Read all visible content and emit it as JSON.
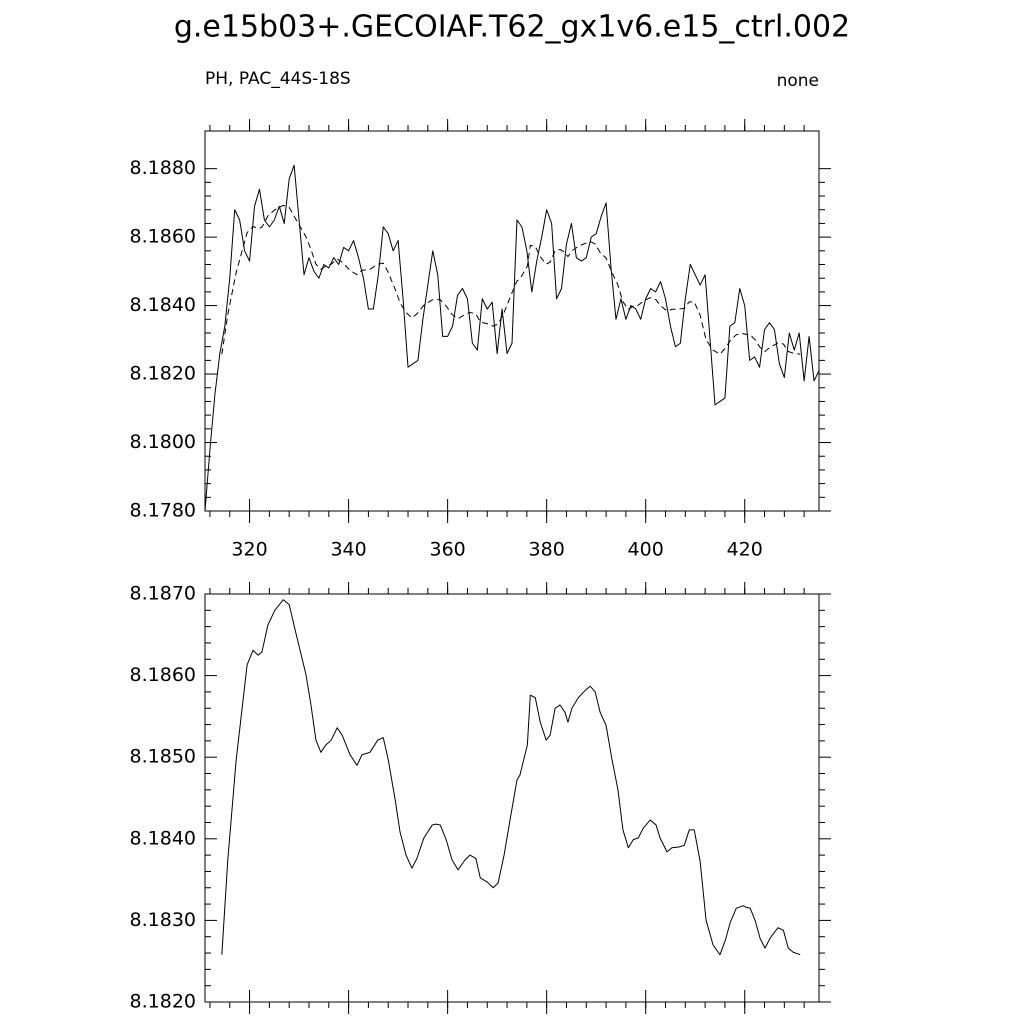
{
  "title": "g.e15b03+.GECOIAF.T62_gx1v6.e15_ctrl.002",
  "chart_data": [
    {
      "type": "line",
      "left_label": "PH, PAC_44S-18S",
      "right_label": "none",
      "xlim": [
        311,
        435
      ],
      "xticks": [
        320,
        340,
        360,
        380,
        400,
        420
      ],
      "xtick_labels": true,
      "ylim": [
        8.178,
        8.1891
      ],
      "yticks": [
        {
          "value": 8.178,
          "label": "8.1780"
        },
        {
          "value": 8.18,
          "label": "8.1800"
        },
        {
          "value": 8.182,
          "label": "8.1820"
        },
        {
          "value": 8.184,
          "label": "8.1840"
        },
        {
          "value": 8.186,
          "label": "8.1860"
        },
        {
          "value": 8.188,
          "label": "8.1880"
        }
      ],
      "series": [
        {
          "color": "#000000",
          "dashed": false,
          "x": [
            311,
            312,
            313,
            314,
            315,
            316,
            317,
            318,
            319,
            320,
            321,
            322,
            323,
            324,
            325,
            326,
            327,
            328,
            329,
            330,
            331,
            332,
            333,
            334,
            335,
            336,
            337,
            338,
            339,
            340,
            341,
            342,
            343,
            344,
            345,
            346,
            347,
            348,
            349,
            350,
            351,
            352,
            353,
            354,
            355,
            356,
            357,
            358,
            359,
            360,
            361,
            362,
            363,
            364,
            365,
            366,
            367,
            368,
            369,
            370,
            371,
            372,
            373,
            374,
            375,
            376,
            377,
            378,
            379,
            380,
            381,
            382,
            383,
            384,
            385,
            386,
            387,
            388,
            389,
            390,
            391,
            392,
            393,
            394,
            395,
            396,
            397,
            398,
            399,
            400,
            401,
            402,
            403,
            404,
            405,
            406,
            407,
            408,
            409,
            410,
            411,
            412,
            413,
            414,
            415,
            416,
            417,
            418,
            419,
            420,
            421,
            422,
            423,
            424,
            425,
            426,
            427,
            428,
            429,
            430,
            431,
            432,
            433,
            434,
            435
          ],
          "values": [
            8.178,
            8.1798,
            8.1814,
            8.1826,
            8.1834,
            8.1848,
            8.1868,
            8.1865,
            8.1856,
            8.1853,
            8.1869,
            8.1874,
            8.1865,
            8.1863,
            8.1865,
            8.1869,
            8.1864,
            8.1877,
            8.1881,
            8.1865,
            8.1849,
            8.1854,
            8.185,
            8.1848,
            8.1852,
            8.1851,
            8.1854,
            8.1852,
            8.1857,
            8.1856,
            8.1859,
            8.1854,
            8.1848,
            8.1839,
            8.1839,
            8.1849,
            8.1863,
            8.1861,
            8.1856,
            8.1859,
            8.1842,
            8.1822,
            8.1823,
            8.1824,
            8.1836,
            8.1846,
            8.1856,
            8.1849,
            8.1831,
            8.1831,
            8.1834,
            8.1843,
            8.1845,
            8.1842,
            8.1829,
            8.1827,
            8.1842,
            8.1839,
            8.1841,
            8.1826,
            8.1839,
            8.1826,
            8.1829,
            8.1865,
            8.1863,
            8.1856,
            8.1844,
            8.1853,
            8.186,
            8.1868,
            8.1864,
            8.1842,
            8.1845,
            8.1858,
            8.1864,
            8.1854,
            8.1853,
            8.1854,
            8.186,
            8.1861,
            8.1866,
            8.187,
            8.1851,
            8.1836,
            8.1842,
            8.1836,
            8.184,
            8.1839,
            8.1836,
            8.1842,
            8.1845,
            8.1844,
            8.1847,
            8.1842,
            8.1834,
            8.1828,
            8.1829,
            8.1842,
            8.1852,
            8.1849,
            8.1846,
            8.1849,
            8.183,
            8.1811,
            8.1812,
            8.1813,
            8.1834,
            8.1835,
            8.1845,
            8.184,
            8.1824,
            8.1825,
            8.1822,
            8.1833,
            8.1835,
            8.1833,
            8.1823,
            8.1819,
            8.1832,
            8.1827,
            8.1832,
            8.1818,
            8.1831,
            8.1818,
            8.1821
          ]
        },
        {
          "color": "#000000",
          "dashed": true,
          "x": [
            314.4,
            315.6,
            317.3,
            319.5,
            320.7,
            321.7,
            322.5,
            323.7,
            325.1,
            326.8,
            328.0,
            329.2,
            330.2,
            331.4,
            332.4,
            333.4,
            334.4,
            335.4,
            336.5,
            337.7,
            338.7,
            339.5,
            340.3,
            341.7,
            342.7,
            344.3,
            345.9,
            347.0,
            348.0,
            349.4,
            350.4,
            351.6,
            352.8,
            353.8,
            355.2,
            356.9,
            357.7,
            358.5,
            359.7,
            360.9,
            362.1,
            363.5,
            364.5,
            365.7,
            366.6,
            368.0,
            369.2,
            370.2,
            371.4,
            372.6,
            374.0,
            374.6,
            376.1,
            376.7,
            377.7,
            378.7,
            379.9,
            380.7,
            381.7,
            382.7,
            383.7,
            384.3,
            385.1,
            386.4,
            387.8,
            388.8,
            389.8,
            390.8,
            392.0,
            393.2,
            394.4,
            395.4,
            396.5,
            397.5,
            398.5,
            399.5,
            400.9,
            402.1,
            402.9,
            404.3,
            405.3,
            406.7,
            407.8,
            408.8,
            409.8,
            411.0,
            412.2,
            413.6,
            415.0,
            416.1,
            417.1,
            418.3,
            419.7,
            420.3,
            421.1,
            422.1,
            423.1,
            424.1,
            425.1,
            426.7,
            427.8,
            428.8,
            429.8,
            431.2
          ],
          "values": [
            8.18258,
            8.18374,
            8.18497,
            8.18613,
            8.18631,
            8.18625,
            8.18629,
            8.18662,
            8.1868,
            8.18693,
            8.18687,
            8.18656,
            8.18631,
            8.18601,
            8.18564,
            8.18521,
            8.18506,
            8.18515,
            8.18521,
            8.18536,
            8.18527,
            8.18515,
            8.18503,
            8.1849,
            8.18503,
            8.18506,
            8.18521,
            8.18524,
            8.18497,
            8.18448,
            8.18408,
            8.1838,
            8.18364,
            8.18376,
            8.18401,
            8.18417,
            8.18418,
            8.18417,
            8.18399,
            8.18374,
            8.18362,
            8.18374,
            8.1838,
            8.18376,
            8.18352,
            8.18347,
            8.1834,
            8.18346,
            8.1838,
            8.18423,
            8.18472,
            8.18478,
            8.18515,
            8.18576,
            8.18573,
            8.18543,
            8.18521,
            8.18527,
            8.1856,
            8.18564,
            8.18555,
            8.18543,
            8.1856,
            8.18573,
            8.18582,
            8.18587,
            8.1858,
            8.18555,
            8.18539,
            8.18497,
            8.1846,
            8.18411,
            8.18389,
            8.18399,
            8.18401,
            8.18413,
            8.18423,
            8.18417,
            8.18401,
            8.18384,
            8.18389,
            8.1839,
            8.18392,
            8.18411,
            8.18411,
            8.18372,
            8.183,
            8.1827,
            8.18258,
            8.18276,
            8.18298,
            8.18315,
            8.18318,
            8.18316,
            8.18315,
            8.183,
            8.18278,
            8.18266,
            8.18278,
            8.18291,
            8.18288,
            8.18266,
            8.18261,
            8.18258
          ]
        }
      ]
    },
    {
      "type": "line",
      "xlim": [
        311,
        435
      ],
      "xticks": [
        320,
        340,
        360,
        380,
        400,
        420
      ],
      "xtick_labels": false,
      "ylim": [
        8.182,
        8.187
      ],
      "yticks": [
        {
          "value": 8.182,
          "label": "8.1820"
        },
        {
          "value": 8.183,
          "label": "8.1830"
        },
        {
          "value": 8.184,
          "label": "8.1840"
        },
        {
          "value": 8.185,
          "label": "8.1850"
        },
        {
          "value": 8.186,
          "label": "8.1860"
        },
        {
          "value": 8.187,
          "label": "8.1870"
        }
      ],
      "series": [
        {
          "color": "#000000",
          "dashed": false,
          "x": [
            314.4,
            315.6,
            317.3,
            319.5,
            320.7,
            321.7,
            322.5,
            323.7,
            325.1,
            326.8,
            328.0,
            329.2,
            330.2,
            331.4,
            332.4,
            333.4,
            334.4,
            335.4,
            336.5,
            337.7,
            338.7,
            339.5,
            340.3,
            341.7,
            342.7,
            344.3,
            345.9,
            347.0,
            348.0,
            349.4,
            350.4,
            351.6,
            352.8,
            353.8,
            355.2,
            356.9,
            357.7,
            358.5,
            359.7,
            360.9,
            362.1,
            363.5,
            364.5,
            365.7,
            366.6,
            368.0,
            369.2,
            370.2,
            371.4,
            372.6,
            374.0,
            374.6,
            376.1,
            376.7,
            377.7,
            378.7,
            379.9,
            380.7,
            381.7,
            382.7,
            383.7,
            384.3,
            385.1,
            386.4,
            387.8,
            388.8,
            389.8,
            390.8,
            392.0,
            393.2,
            394.4,
            395.4,
            396.5,
            397.5,
            398.5,
            399.5,
            400.9,
            402.1,
            402.9,
            404.3,
            405.3,
            406.7,
            407.8,
            408.8,
            409.8,
            411.0,
            412.2,
            413.6,
            415.0,
            416.1,
            417.1,
            418.3,
            419.7,
            420.3,
            421.1,
            422.1,
            423.1,
            424.1,
            425.1,
            426.7,
            427.8,
            428.8,
            429.8,
            431.2
          ],
          "values": [
            8.18258,
            8.18374,
            8.18497,
            8.18613,
            8.18631,
            8.18625,
            8.18629,
            8.18662,
            8.1868,
            8.18693,
            8.18687,
            8.18656,
            8.18631,
            8.18601,
            8.18564,
            8.18521,
            8.18506,
            8.18515,
            8.18521,
            8.18536,
            8.18527,
            8.18515,
            8.18503,
            8.1849,
            8.18503,
            8.18506,
            8.18521,
            8.18524,
            8.18497,
            8.18448,
            8.18408,
            8.1838,
            8.18364,
            8.18376,
            8.18401,
            8.18417,
            8.18418,
            8.18417,
            8.18399,
            8.18374,
            8.18362,
            8.18374,
            8.1838,
            8.18376,
            8.18352,
            8.18347,
            8.1834,
            8.18346,
            8.1838,
            8.18423,
            8.18472,
            8.18478,
            8.18515,
            8.18576,
            8.18573,
            8.18543,
            8.18521,
            8.18527,
            8.1856,
            8.18564,
            8.18555,
            8.18543,
            8.1856,
            8.18573,
            8.18582,
            8.18587,
            8.1858,
            8.18555,
            8.18539,
            8.18497,
            8.1846,
            8.18411,
            8.18389,
            8.18399,
            8.18401,
            8.18413,
            8.18423,
            8.18417,
            8.18401,
            8.18384,
            8.18389,
            8.1839,
            8.18392,
            8.18411,
            8.18411,
            8.18372,
            8.183,
            8.1827,
            8.18258,
            8.18276,
            8.18298,
            8.18315,
            8.18318,
            8.18316,
            8.18315,
            8.183,
            8.18278,
            8.18266,
            8.18278,
            8.18291,
            8.18288,
            8.18266,
            8.18261,
            8.18258
          ]
        }
      ]
    }
  ]
}
